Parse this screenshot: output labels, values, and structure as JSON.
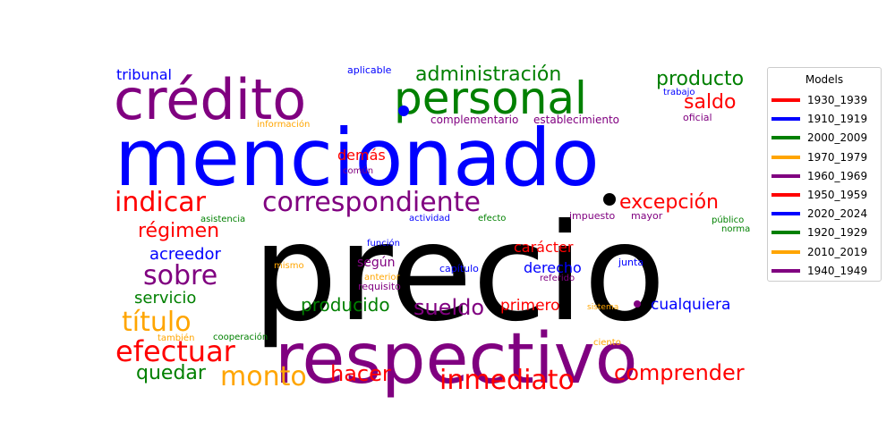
{
  "chart_data": {
    "type": "wordcloud",
    "legend": {
      "title": "Models",
      "placement": "right",
      "entries": [
        {
          "label": "1930_1939",
          "color": "#ff0000"
        },
        {
          "label": "1910_1919",
          "color": "#0000ff"
        },
        {
          "label": "2000_2009",
          "color": "#008000"
        },
        {
          "label": "1970_1979",
          "color": "#ffa500"
        },
        {
          "label": "1960_1969",
          "color": "#800080"
        },
        {
          "label": "1950_1959",
          "color": "#ff0000"
        },
        {
          "label": "2020_2024",
          "color": "#0000ff"
        },
        {
          "label": "1920_1929",
          "color": "#008000"
        },
        {
          "label": "2010_2019",
          "color": "#ffa500"
        },
        {
          "label": "1940_1949",
          "color": "#800080"
        }
      ]
    },
    "words": [
      {
        "text": "precio",
        "color": "#000000"
      },
      {
        "text": "mencionado",
        "color": "#0000ff"
      },
      {
        "text": "respectivo",
        "color": "#800080"
      },
      {
        "text": "crédito",
        "color": "#800080"
      },
      {
        "text": "personal",
        "color": "#008000"
      },
      {
        "text": "correspondiente",
        "color": "#800080"
      },
      {
        "text": "indicar",
        "color": "#ff0000"
      },
      {
        "text": "inmediato",
        "color": "#ff0000"
      },
      {
        "text": "efectuar",
        "color": "#ff0000"
      },
      {
        "text": "título",
        "color": "#ffa500"
      },
      {
        "text": "monto",
        "color": "#ffa500"
      },
      {
        "text": "sobre",
        "color": "#800080"
      },
      {
        "text": "administración",
        "color": "#008000"
      },
      {
        "text": "excepción",
        "color": "#ff0000"
      },
      {
        "text": "comprender",
        "color": "#ff0000"
      },
      {
        "text": "sueldo",
        "color": "#800080"
      },
      {
        "text": "hacer",
        "color": "#ff0000"
      },
      {
        "text": "producto",
        "color": "#008000"
      },
      {
        "text": "saldo",
        "color": "#ff0000"
      },
      {
        "text": "régimen",
        "color": "#ff0000"
      },
      {
        "text": "acreedor",
        "color": "#0000ff"
      },
      {
        "text": "servicio",
        "color": "#008000"
      },
      {
        "text": "quedar",
        "color": "#008000"
      },
      {
        "text": "producido",
        "color": "#008000"
      },
      {
        "text": "derecho",
        "color": "#0000ff"
      },
      {
        "text": "carácter",
        "color": "#ff0000"
      },
      {
        "text": "cualquiera",
        "color": "#0000ff"
      },
      {
        "text": "primero",
        "color": "#ff0000"
      },
      {
        "text": "tribunal",
        "color": "#0000ff"
      },
      {
        "text": "demás",
        "color": "#ff0000"
      },
      {
        "text": "según",
        "color": "#800080"
      },
      {
        "text": "complementario",
        "color": "#800080"
      },
      {
        "text": "establecimiento",
        "color": "#800080"
      },
      {
        "text": "aplicable",
        "color": "#0000ff"
      },
      {
        "text": "trabajo",
        "color": "#0000ff"
      },
      {
        "text": "oficial",
        "color": "#800080"
      },
      {
        "text": "información",
        "color": "#ffa500"
      },
      {
        "text": "común",
        "color": "#800080"
      },
      {
        "text": "asistencia",
        "color": "#008000"
      },
      {
        "text": "actividad",
        "color": "#0000ff"
      },
      {
        "text": "efecto",
        "color": "#008000"
      },
      {
        "text": "impuesto",
        "color": "#800080"
      },
      {
        "text": "mayor",
        "color": "#800080"
      },
      {
        "text": "público",
        "color": "#008000"
      },
      {
        "text": "norma",
        "color": "#008000"
      },
      {
        "text": "función",
        "color": "#0000ff"
      },
      {
        "text": "mismo",
        "color": "#ffa500"
      },
      {
        "text": "anterior",
        "color": "#ffa500"
      },
      {
        "text": "requisito",
        "color": "#800080"
      },
      {
        "text": "capítulo",
        "color": "#0000ff"
      },
      {
        "text": "referido",
        "color": "#800080"
      },
      {
        "text": "junta",
        "color": "#0000ff"
      },
      {
        "text": "sistema",
        "color": "#ffa500"
      },
      {
        "text": "también",
        "color": "#ffa500"
      },
      {
        "text": "cooperación",
        "color": "#008000"
      },
      {
        "text": "ciento",
        "color": "#ffa500"
      }
    ]
  }
}
